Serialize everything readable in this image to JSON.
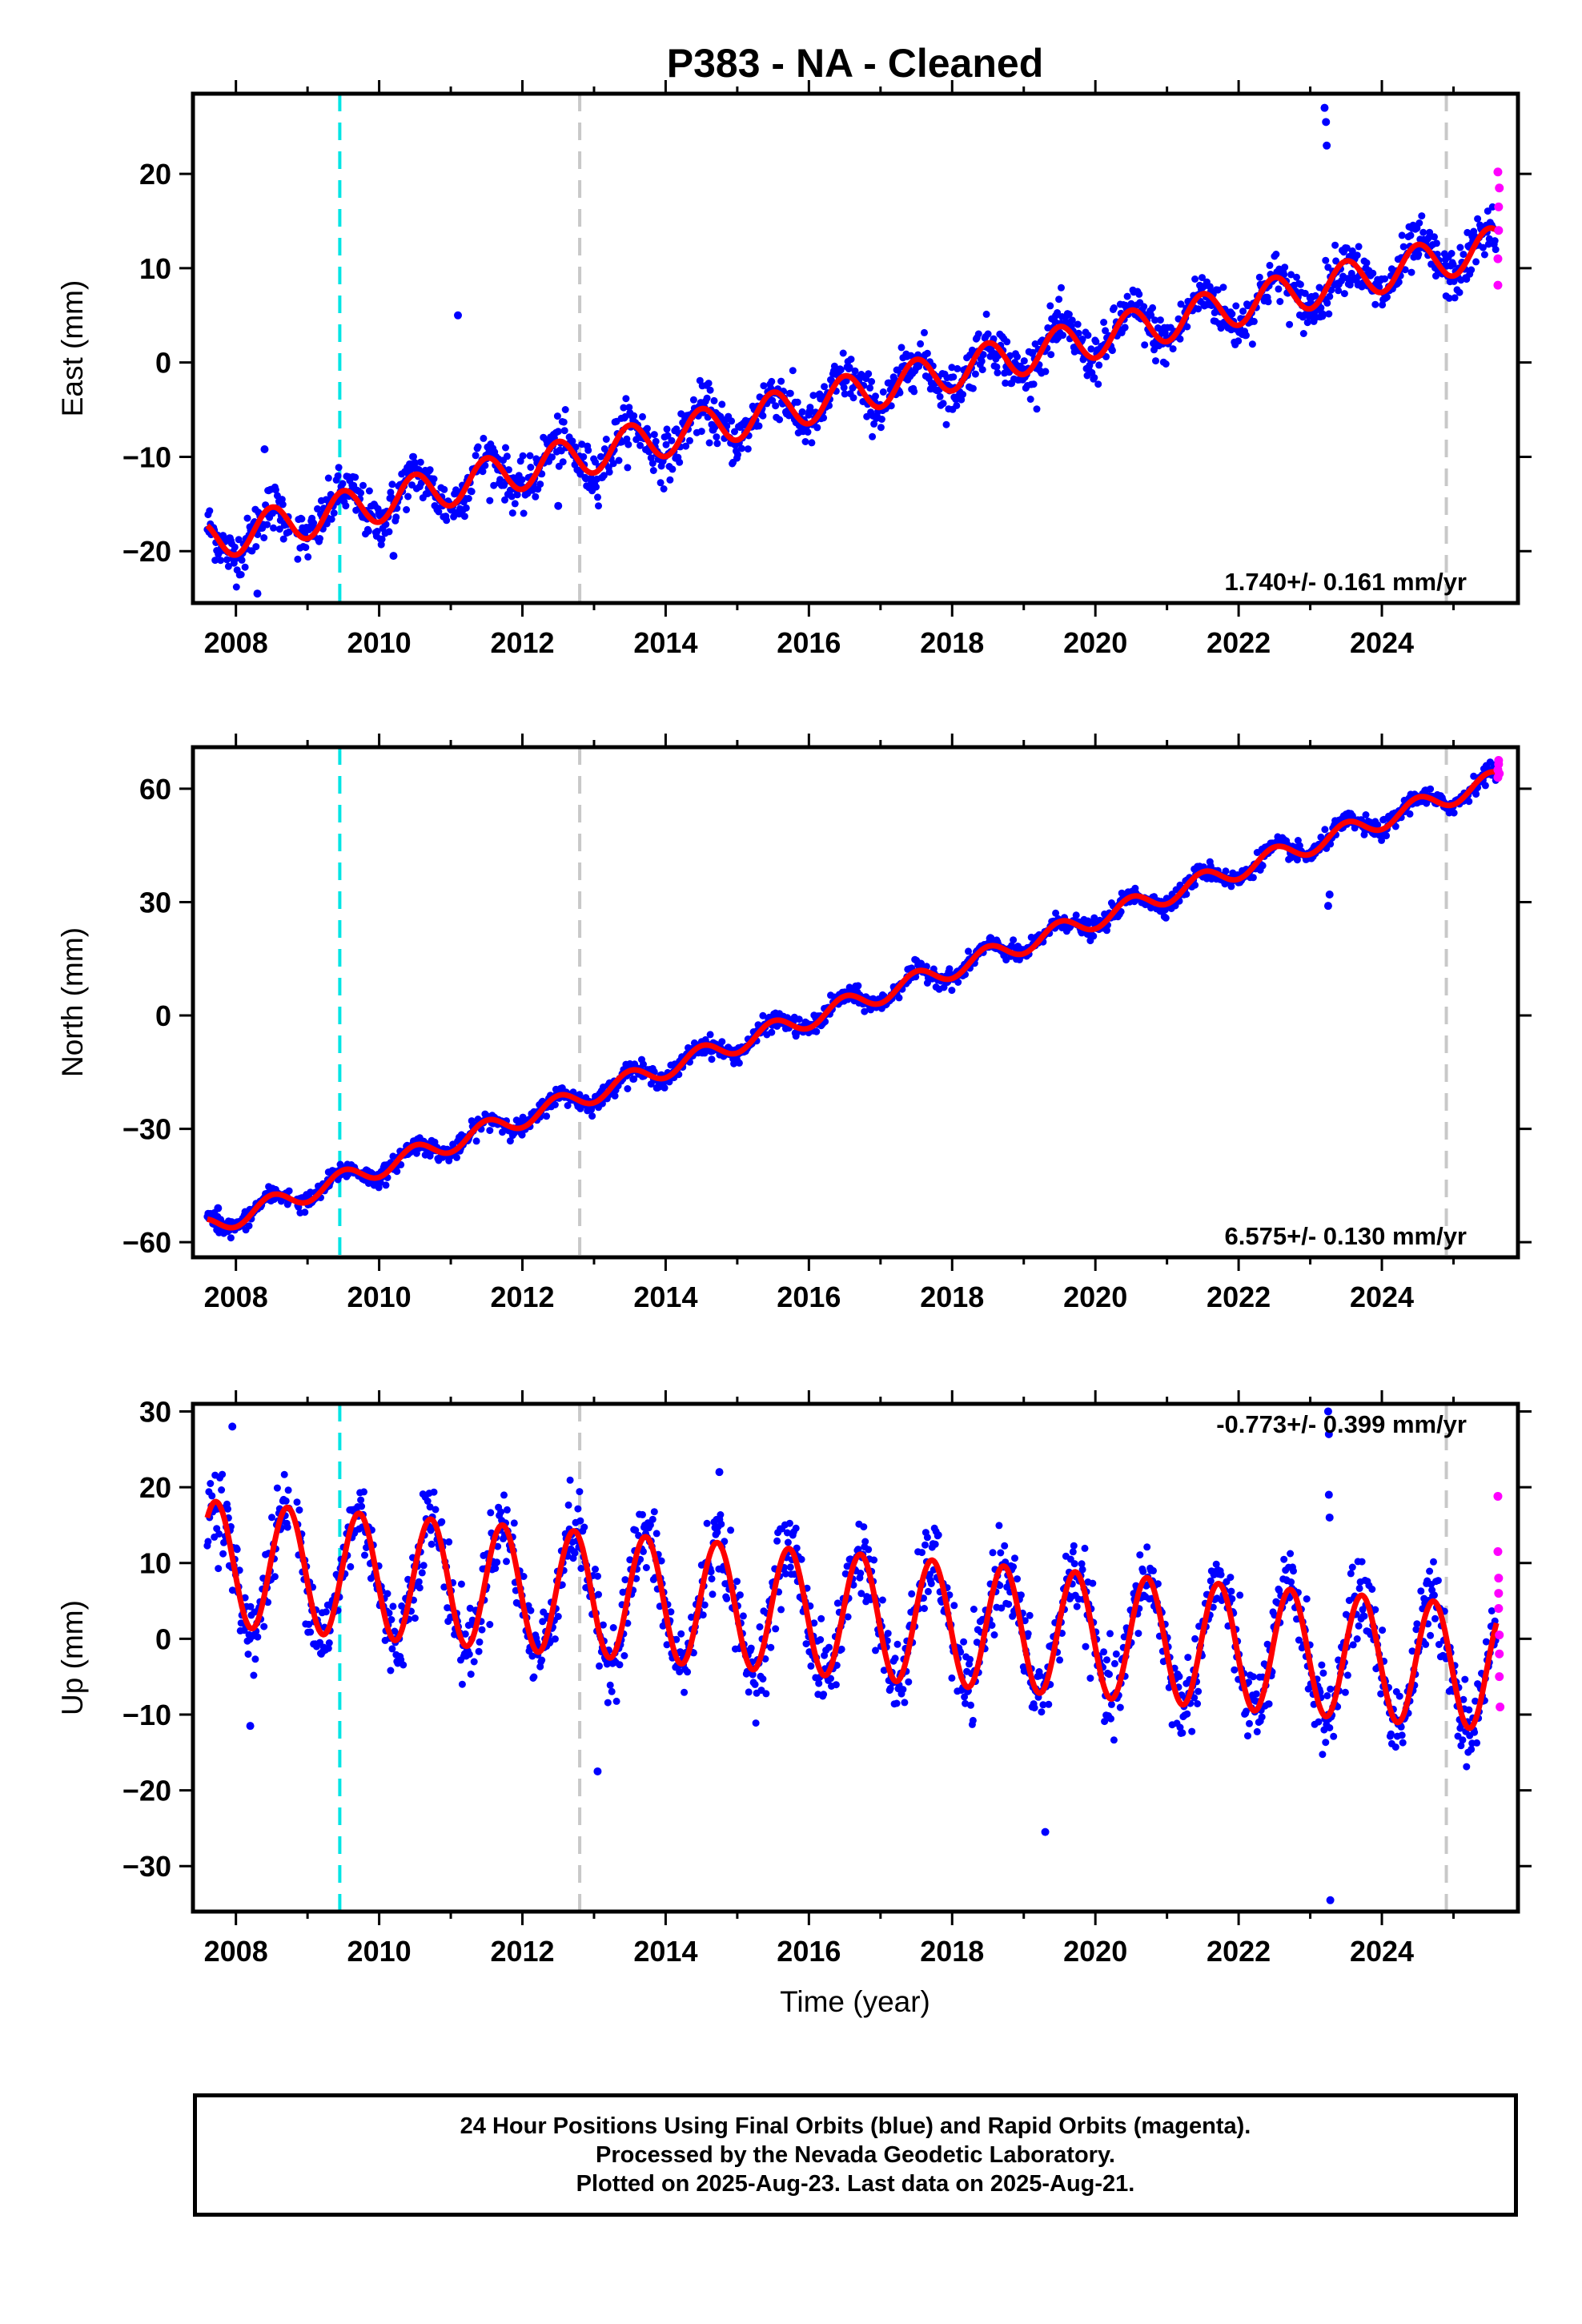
{
  "title": "P383  - NA - Cleaned",
  "colors": {
    "final_orbits": "#0000ff",
    "rapid_orbits": "#ff00ff",
    "model": "#ff0000",
    "event_cyan": "#00e5e5",
    "event_gray": "#c8c8c8"
  },
  "xaxis": {
    "label": "Time (year)",
    "range": [
      2007.4,
      2025.9
    ],
    "ticks": [
      2008,
      2010,
      2012,
      2014,
      2016,
      2018,
      2020,
      2022,
      2024
    ],
    "tick_labels": [
      "2008",
      "2010",
      "2012",
      "2014",
      "2016",
      "2018",
      "2020",
      "2022",
      "2024"
    ]
  },
  "event_lines": [
    {
      "x": 2009.45,
      "color": "cyan"
    },
    {
      "x": 2012.8,
      "color": "gray"
    },
    {
      "x": 2024.9,
      "color": "gray"
    }
  ],
  "chart_data": [
    {
      "type": "scatter",
      "component": "east",
      "ylabel": "East (mm)",
      "ylim": [
        -25.5,
        28.5
      ],
      "yticks": [
        -20,
        -10,
        0,
        10,
        20
      ],
      "ytick_labels": [
        "−20",
        "−10",
        "0",
        "10",
        "20"
      ],
      "rate_label": "1.740+/- 0.161 mm/yr",
      "rate_position": "bottom-right",
      "model": {
        "start_year": 2007.6,
        "end_year": 2025.6,
        "start_value": -19,
        "slope": 1.74,
        "annual_amplitude": 2.1,
        "annual_phase_peak": 0.5,
        "noise": 1.3
      },
      "outliers": [
        {
          "x": 2023.2,
          "y": 27.0
        },
        {
          "x": 2023.22,
          "y": 25.5
        },
        {
          "x": 2023.23,
          "y": 23.0
        },
        {
          "x": 2011.1,
          "y": 5.0
        },
        {
          "x": 2008.4,
          "y": -9.2
        },
        {
          "x": 2010.2,
          "y": -20.5
        },
        {
          "x": 2012.5,
          "y": -15.2
        },
        {
          "x": 2008.3,
          "y": -24.5
        }
      ],
      "rapid": [
        {
          "x": 2025.62,
          "y": 8.2
        },
        {
          "x": 2025.62,
          "y": 20.2
        },
        {
          "x": 2025.62,
          "y": 11.0
        },
        {
          "x": 2025.63,
          "y": 14.0
        },
        {
          "x": 2025.63,
          "y": 16.5
        },
        {
          "x": 2025.64,
          "y": 18.5
        }
      ]
    },
    {
      "type": "scatter",
      "component": "north",
      "ylabel": "North (mm)",
      "ylim": [
        -64,
        71
      ],
      "yticks": [
        -60,
        -30,
        0,
        30,
        60
      ],
      "ytick_labels": [
        "−60",
        "−30",
        "0",
        "30",
        "60"
      ],
      "rate_label": "6.575+/- 0.130 mm/yr",
      "rate_position": "bottom-right",
      "model": {
        "start_year": 2007.6,
        "end_year": 2025.6,
        "start_value": -56,
        "slope": 6.575,
        "annual_amplitude": 2.6,
        "annual_phase_peak": 0.5,
        "noise": 1.2
      },
      "outliers": [
        {
          "x": 2023.25,
          "y": 29.0
        },
        {
          "x": 2023.27,
          "y": 32.0
        },
        {
          "x": 2007.75,
          "y": -51.0
        }
      ],
      "rapid": [
        {
          "x": 2025.62,
          "y": 63.0
        },
        {
          "x": 2025.62,
          "y": 65.0
        },
        {
          "x": 2025.63,
          "y": 66.5
        },
        {
          "x": 2025.63,
          "y": 67.5
        },
        {
          "x": 2025.64,
          "y": 64.0
        }
      ]
    },
    {
      "type": "scatter",
      "component": "up",
      "ylabel": "Up (mm)",
      "ylim": [
        -36,
        31
      ],
      "yticks": [
        -30,
        -20,
        -10,
        0,
        10,
        20,
        30
      ],
      "ytick_labels": [
        "−30",
        "−20",
        "−10",
        "0",
        "10",
        "20",
        "30"
      ],
      "rate_label": "-0.773+/- 0.399 mm/yr",
      "rate_position": "top-right",
      "model": {
        "start_year": 2007.6,
        "end_year": 2025.6,
        "start_value": 10,
        "slope": -0.773,
        "annual_amplitude": 8.2,
        "annual_phase_peak": 0.72,
        "noise": 2.6
      },
      "outliers": [
        {
          "x": 2023.25,
          "y": 30.0
        },
        {
          "x": 2023.26,
          "y": 27.0
        },
        {
          "x": 2023.26,
          "y": 19.0
        },
        {
          "x": 2023.27,
          "y": 16.0
        },
        {
          "x": 2023.28,
          "y": -34.5
        },
        {
          "x": 2007.95,
          "y": 28.0
        },
        {
          "x": 2014.75,
          "y": 22.0
        },
        {
          "x": 2019.3,
          "y": -25.5
        },
        {
          "x": 2013.05,
          "y": -17.5
        },
        {
          "x": 2008.2,
          "y": -11.5
        }
      ],
      "rapid": [
        {
          "x": 2025.62,
          "y": 18.8
        },
        {
          "x": 2025.62,
          "y": 11.5
        },
        {
          "x": 2025.63,
          "y": 8.0
        },
        {
          "x": 2025.63,
          "y": 6.0
        },
        {
          "x": 2025.63,
          "y": 4.0
        },
        {
          "x": 2025.64,
          "y": 0.5
        },
        {
          "x": 2025.64,
          "y": -2.0
        },
        {
          "x": 2025.64,
          "y": -5.0
        },
        {
          "x": 2025.65,
          "y": -9.0
        }
      ]
    }
  ],
  "footer": {
    "line1": "24 Hour Positions Using Final Orbits (blue) and Rapid Orbits (magenta).",
    "line2": "Processed by the Nevada Geodetic Laboratory.",
    "line3": "Plotted on 2025-Aug-23. Last data on 2025-Aug-21."
  }
}
